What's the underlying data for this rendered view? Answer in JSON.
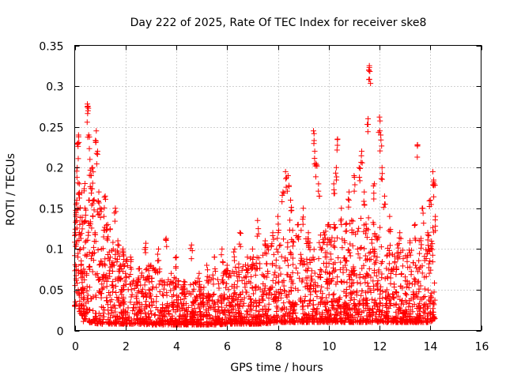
{
  "chart_data": {
    "type": "scatter",
    "title": "Day 222 of 2025, Rate Of TEC Index for receiver ske8",
    "xlabel": "GPS time / hours",
    "ylabel": "ROTI / TECUs",
    "xlim": [
      0,
      16
    ],
    "ylim": [
      0,
      0.35
    ],
    "x_ticks": [
      0,
      2,
      4,
      6,
      8,
      10,
      12,
      14,
      16
    ],
    "x_tick_labels": [
      "0",
      "2",
      "4",
      "6",
      "8",
      "10",
      "12",
      "14",
      "16"
    ],
    "y_ticks": [
      0,
      0.05,
      0.1,
      0.15,
      0.2,
      0.25,
      0.3,
      0.35
    ],
    "y_tick_labels": [
      "0",
      "0.05",
      "0.1",
      "0.15",
      "0.2",
      "0.25",
      "0.3",
      "0.35"
    ],
    "grid": true,
    "marker": "+",
    "color": "#ff0000",
    "series": [
      {
        "name": "ROTI",
        "points": [
          [
            0.02,
            0.12
          ],
          [
            0.05,
            0.14
          ],
          [
            0.08,
            0.16
          ],
          [
            0.1,
            0.2
          ],
          [
            0.12,
            0.23
          ],
          [
            0.15,
            0.24
          ],
          [
            0.18,
            0.18
          ],
          [
            0.2,
            0.13
          ],
          [
            0.22,
            0.1
          ],
          [
            0.25,
            0.08
          ],
          [
            0.3,
            0.05
          ],
          [
            0.35,
            0.03
          ],
          [
            0.4,
            0.15
          ],
          [
            0.45,
            0.11
          ],
          [
            0.5,
            0.278
          ],
          [
            0.52,
            0.275
          ],
          [
            0.55,
            0.24
          ],
          [
            0.6,
            0.21
          ],
          [
            0.65,
            0.19
          ],
          [
            0.7,
            0.2
          ],
          [
            0.75,
            0.16
          ],
          [
            0.8,
            0.12
          ],
          [
            0.85,
            0.245
          ],
          [
            0.9,
            0.22
          ],
          [
            0.95,
            0.17
          ],
          [
            1.0,
            0.15
          ],
          [
            1.05,
            0.1
          ],
          [
            1.1,
            0.08
          ],
          [
            1.15,
            0.14
          ],
          [
            1.2,
            0.165
          ],
          [
            1.3,
            0.13
          ],
          [
            1.4,
            0.09
          ],
          [
            1.5,
            0.06
          ],
          [
            1.6,
            0.15
          ],
          [
            1.7,
            0.11
          ],
          [
            1.8,
            0.08
          ],
          [
            1.9,
            0.1
          ],
          [
            2.0,
            0.07
          ],
          [
            2.2,
            0.09
          ],
          [
            2.5,
            0.06
          ],
          [
            2.8,
            0.107
          ],
          [
            3.0,
            0.08
          ],
          [
            3.3,
            0.1
          ],
          [
            3.6,
            0.113
          ],
          [
            3.8,
            0.07
          ],
          [
            4.0,
            0.09
          ],
          [
            4.3,
            0.06
          ],
          [
            4.6,
            0.105
          ],
          [
            4.9,
            0.07
          ],
          [
            5.2,
            0.08
          ],
          [
            5.5,
            0.09
          ],
          [
            5.8,
            0.1
          ],
          [
            6.0,
            0.08
          ],
          [
            6.3,
            0.1
          ],
          [
            6.5,
            0.12
          ],
          [
            6.8,
            0.09
          ],
          [
            7.0,
            0.1
          ],
          [
            7.2,
            0.135
          ],
          [
            7.5,
            0.11
          ],
          [
            7.8,
            0.12
          ],
          [
            8.0,
            0.14
          ],
          [
            8.2,
            0.17
          ],
          [
            8.3,
            0.195
          ],
          [
            8.4,
            0.19
          ],
          [
            8.5,
            0.16
          ],
          [
            8.8,
            0.13
          ],
          [
            9.0,
            0.15
          ],
          [
            9.2,
            0.12
          ],
          [
            9.4,
            0.245
          ],
          [
            9.45,
            0.22
          ],
          [
            9.5,
            0.205
          ],
          [
            9.6,
            0.18
          ],
          [
            9.8,
            0.12
          ],
          [
            10.0,
            0.13
          ],
          [
            10.2,
            0.18
          ],
          [
            10.3,
            0.2
          ],
          [
            10.35,
            0.235
          ],
          [
            10.5,
            0.15
          ],
          [
            10.8,
            0.17
          ],
          [
            11.0,
            0.19
          ],
          [
            11.2,
            0.2
          ],
          [
            11.3,
            0.22
          ],
          [
            11.4,
            0.17
          ],
          [
            11.55,
            0.26
          ],
          [
            11.6,
            0.325
          ],
          [
            11.62,
            0.318
          ],
          [
            11.8,
            0.18
          ],
          [
            12.0,
            0.262
          ],
          [
            12.05,
            0.24
          ],
          [
            12.1,
            0.2
          ],
          [
            12.2,
            0.165
          ],
          [
            12.4,
            0.14
          ],
          [
            12.8,
            0.12
          ],
          [
            13.2,
            0.11
          ],
          [
            13.4,
            0.13
          ],
          [
            13.5,
            0.228
          ],
          [
            13.7,
            0.15
          ],
          [
            13.9,
            0.12
          ],
          [
            14.0,
            0.16
          ],
          [
            14.1,
            0.195
          ],
          [
            14.15,
            0.18
          ],
          [
            14.2,
            0.14
          ]
        ]
      }
    ],
    "envelope": {
      "x": [
        0,
        0.5,
        1,
        1.5,
        2,
        2.5,
        3,
        3.5,
        4,
        4.5,
        5,
        5.5,
        6,
        6.5,
        7,
        7.5,
        8,
        8.5,
        9,
        9.5,
        10,
        10.5,
        11,
        11.5,
        12,
        12.5,
        13,
        13.5,
        14,
        14.2
      ],
      "top": [
        0.16,
        0.19,
        0.16,
        0.12,
        0.09,
        0.08,
        0.08,
        0.075,
        0.065,
        0.06,
        0.06,
        0.07,
        0.075,
        0.085,
        0.09,
        0.1,
        0.12,
        0.14,
        0.12,
        0.11,
        0.13,
        0.13,
        0.14,
        0.14,
        0.13,
        0.11,
        0.1,
        0.11,
        0.13,
        0.13
      ],
      "bottom": [
        0.03,
        0.01,
        0.008,
        0.008,
        0.008,
        0.008,
        0.007,
        0.007,
        0.007,
        0.007,
        0.007,
        0.007,
        0.008,
        0.008,
        0.008,
        0.008,
        0.01,
        0.01,
        0.01,
        0.01,
        0.01,
        0.01,
        0.01,
        0.01,
        0.01,
        0.01,
        0.01,
        0.01,
        0.01,
        0.015
      ]
    }
  }
}
